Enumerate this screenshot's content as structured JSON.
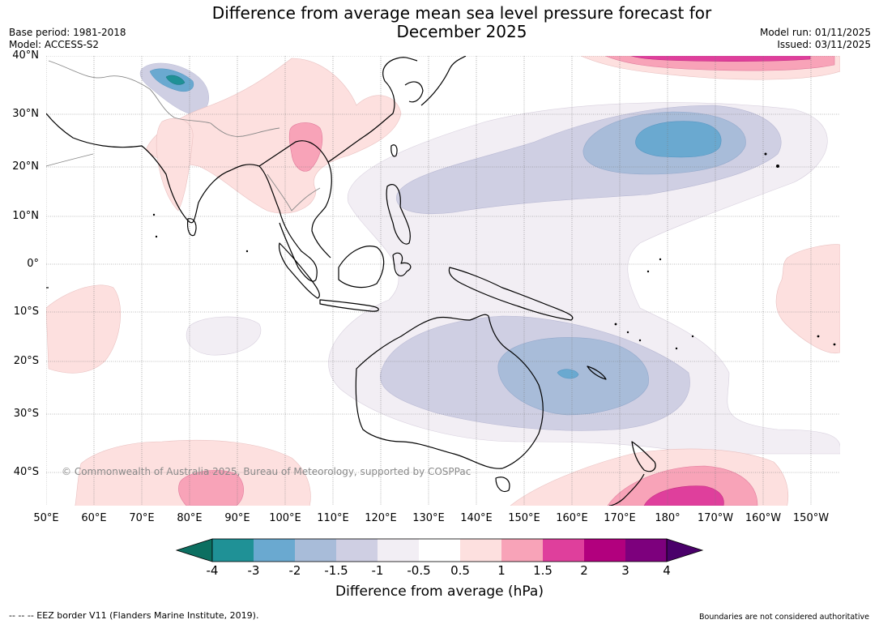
{
  "title_line1": "Difference from average mean sea level pressure forecast for",
  "title_line2": "December 2025",
  "base_period": "Base period: 1981-2018",
  "model": "Model: ACCESS-S2",
  "model_run": "Model run: 01/11/2025",
  "issued": "Issued: 03/11/2025",
  "copyright": "© Commonwealth of Australia 2025, Bureau of Meteorology, supported by COSPPac",
  "latitude_labels": [
    "40°N",
    "30°N",
    "20°N",
    "10°N",
    "0°",
    "10°S",
    "20°S",
    "30°S",
    "40°S"
  ],
  "longitude_labels": [
    "50°E",
    "60°E",
    "70°E",
    "80°E",
    "90°E",
    "100°E",
    "110°E",
    "120°E",
    "130°E",
    "140°E",
    "150°E",
    "160°E",
    "170°E",
    "180°",
    "170°W",
    "160°W",
    "150°W"
  ],
  "colorbar": {
    "ticks": [
      "-4",
      "-3",
      "-2",
      "-1.5",
      "-1",
      "-0.5",
      "0.5",
      "1",
      "1.5",
      "2",
      "3",
      "4"
    ],
    "colors": [
      "#0c6f61",
      "#1f9196",
      "#6aa9d0",
      "#a8bcd9",
      "#cfcfe3",
      "#f2eef4",
      "#ffffff",
      "#fde0df",
      "#f8a3b8",
      "#df3f9c",
      "#b2007e",
      "#7d007d",
      "#4a006a"
    ],
    "label": "Difference from average (hPa)"
  },
  "footer_left": "--  --  -- EEZ border V11 (Flanders Marine Institute, 2019).",
  "footer_right": "Boundaries are not considered authoritative"
}
